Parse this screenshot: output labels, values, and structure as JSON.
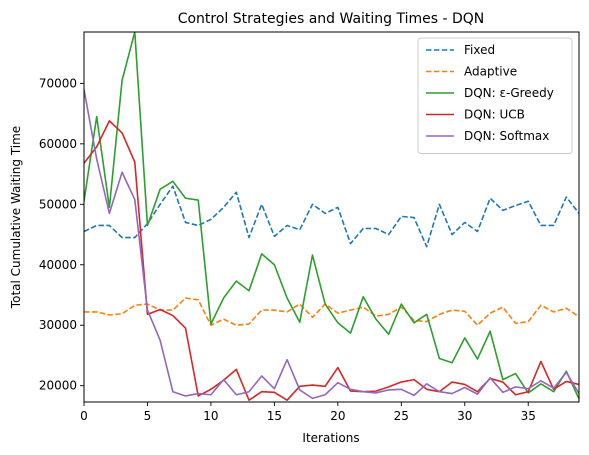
{
  "chart_data": {
    "type": "line",
    "title": "Control Strategies and Waiting Times - DQN",
    "xlabel": "Iterations",
    "ylabel": "Total Cumulative Waiting Time",
    "xlim": [
      0,
      39
    ],
    "ylim": [
      17300,
      78500
    ],
    "xticks": [
      0,
      5,
      10,
      15,
      20,
      25,
      30,
      35
    ],
    "yticks": [
      20000,
      30000,
      40000,
      50000,
      60000,
      70000
    ],
    "grid": false,
    "legend_position": "top-right",
    "x": [
      0,
      1,
      2,
      3,
      4,
      5,
      6,
      7,
      8,
      9,
      10,
      11,
      12,
      13,
      14,
      15,
      16,
      17,
      18,
      19,
      20,
      21,
      22,
      23,
      24,
      25,
      26,
      27,
      28,
      29,
      30,
      31,
      32,
      33,
      34,
      35,
      36,
      37,
      38,
      39
    ],
    "series": [
      {
        "name": "Fixed",
        "color": "#1f77b4",
        "dash": "dashed",
        "values": [
          45500,
          46500,
          46500,
          44500,
          44500,
          46800,
          50000,
          53000,
          47000,
          46500,
          47500,
          49500,
          52000,
          44500,
          50000,
          44700,
          46500,
          45800,
          50000,
          48500,
          49500,
          43500,
          46000,
          46000,
          45000,
          48000,
          47800,
          43000,
          50000,
          45000,
          47000,
          45500,
          51000,
          49000,
          49800,
          50500,
          46500,
          46500,
          51200,
          48500
        ]
      },
      {
        "name": "Adaptive",
        "color": "#ff7f0e",
        "dash": "dashed",
        "values": [
          32200,
          32200,
          31700,
          31900,
          33300,
          33500,
          32500,
          32500,
          34500,
          34200,
          30000,
          31000,
          30000,
          30200,
          32500,
          32500,
          32200,
          33500,
          31300,
          33500,
          32000,
          32500,
          33000,
          31500,
          31800,
          33000,
          30800,
          30600,
          31800,
          32500,
          32300,
          30000,
          32000,
          33000,
          30300,
          30600,
          33300,
          32200,
          32800,
          31400
        ]
      },
      {
        "name": "DQN: ε-Greedy",
        "color": "#2ca02c",
        "dash": "solid",
        "values": [
          50500,
          64500,
          49500,
          70500,
          78500,
          46500,
          52500,
          53800,
          51000,
          50700,
          30200,
          34500,
          37300,
          35700,
          41800,
          40000,
          34500,
          30500,
          41600,
          33500,
          30400,
          28700,
          34700,
          31000,
          28500,
          33500,
          30400,
          31800,
          24500,
          23800,
          27900,
          24400,
          29000,
          21000,
          22000,
          18800,
          20300,
          19000,
          22400,
          17800
        ]
      },
      {
        "name": "DQN: UCB",
        "color": "#d62728",
        "dash": "solid",
        "values": [
          56800,
          59500,
          63800,
          61800,
          57000,
          31800,
          32600,
          31600,
          29500,
          18300,
          19400,
          20900,
          22700,
          17600,
          19000,
          18900,
          17600,
          19900,
          20100,
          19900,
          23000,
          19100,
          19000,
          19100,
          19800,
          20600,
          21000,
          19400,
          19000,
          20600,
          20200,
          19000,
          21200,
          20600,
          18500,
          19000,
          24000,
          19400,
          20700,
          20200
        ]
      },
      {
        "name": "DQN: Softmax",
        "color": "#9467bd",
        "dash": "solid",
        "values": [
          69000,
          57500,
          48500,
          55300,
          50800,
          32500,
          27500,
          19000,
          18300,
          18700,
          18500,
          21000,
          18500,
          19000,
          21600,
          19500,
          24300,
          19300,
          17900,
          18500,
          20500,
          19400,
          19000,
          18800,
          19300,
          19400,
          18400,
          20300,
          19000,
          18700,
          19700,
          18600,
          21300,
          18900,
          19800,
          19500,
          20800,
          19600,
          22200,
          18700
        ]
      }
    ]
  }
}
